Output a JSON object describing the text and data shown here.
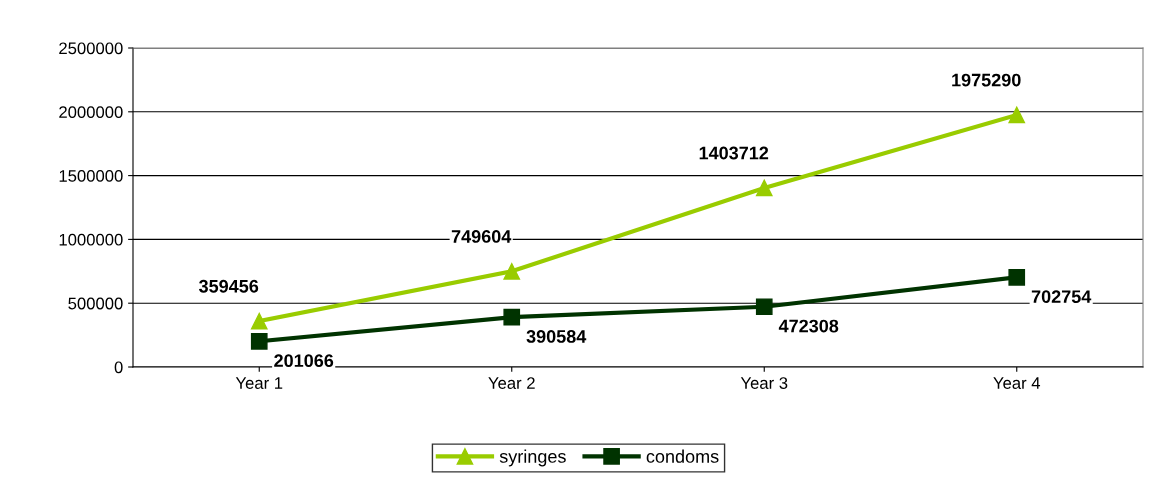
{
  "chart_data": {
    "type": "line",
    "categories": [
      "Year 1",
      "Year 2",
      "Year 3",
      "Year 4"
    ],
    "series": [
      {
        "name": "syringes",
        "color": "#99cc00",
        "marker": "triangle",
        "values": [
          359456,
          749604,
          1403712,
          1975290
        ]
      },
      {
        "name": "condoms",
        "color": "#003300",
        "marker": "square",
        "values": [
          201066,
          390584,
          472308,
          702754
        ]
      }
    ],
    "ylim": [
      0,
      2500000
    ],
    "yticks": [
      0,
      500000,
      1000000,
      1500000,
      2000000,
      2500000
    ],
    "grid": "y",
    "legend": "bottom",
    "data_labels": true,
    "line_style": "solid"
  }
}
